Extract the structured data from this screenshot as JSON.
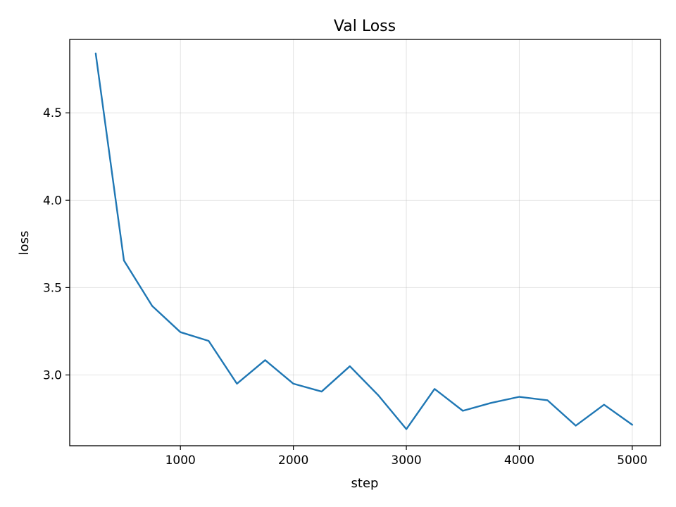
{
  "chart_data": {
    "type": "line",
    "title": "Val Loss",
    "xlabel": "step",
    "ylabel": "loss",
    "xlim": [
      20,
      5250
    ],
    "ylim": [
      2.595,
      4.92
    ],
    "xticks": [
      1000,
      2000,
      3000,
      4000,
      5000
    ],
    "yticks": [
      3.0,
      3.5,
      4.0,
      4.5
    ],
    "grid": true,
    "series": [
      {
        "color": "#1f77b4",
        "x": [
          250,
          500,
          750,
          1000,
          1250,
          1500,
          1750,
          2000,
          2250,
          2500,
          2750,
          3000,
          3250,
          3500,
          3750,
          4000,
          4250,
          4500,
          4750,
          5000
        ],
        "y": [
          4.84,
          3.655,
          3.395,
          3.245,
          3.195,
          2.95,
          3.085,
          2.95,
          2.905,
          3.05,
          2.885,
          2.69,
          2.92,
          2.795,
          2.84,
          2.875,
          2.855,
          2.71,
          2.83,
          2.715
        ]
      }
    ]
  }
}
